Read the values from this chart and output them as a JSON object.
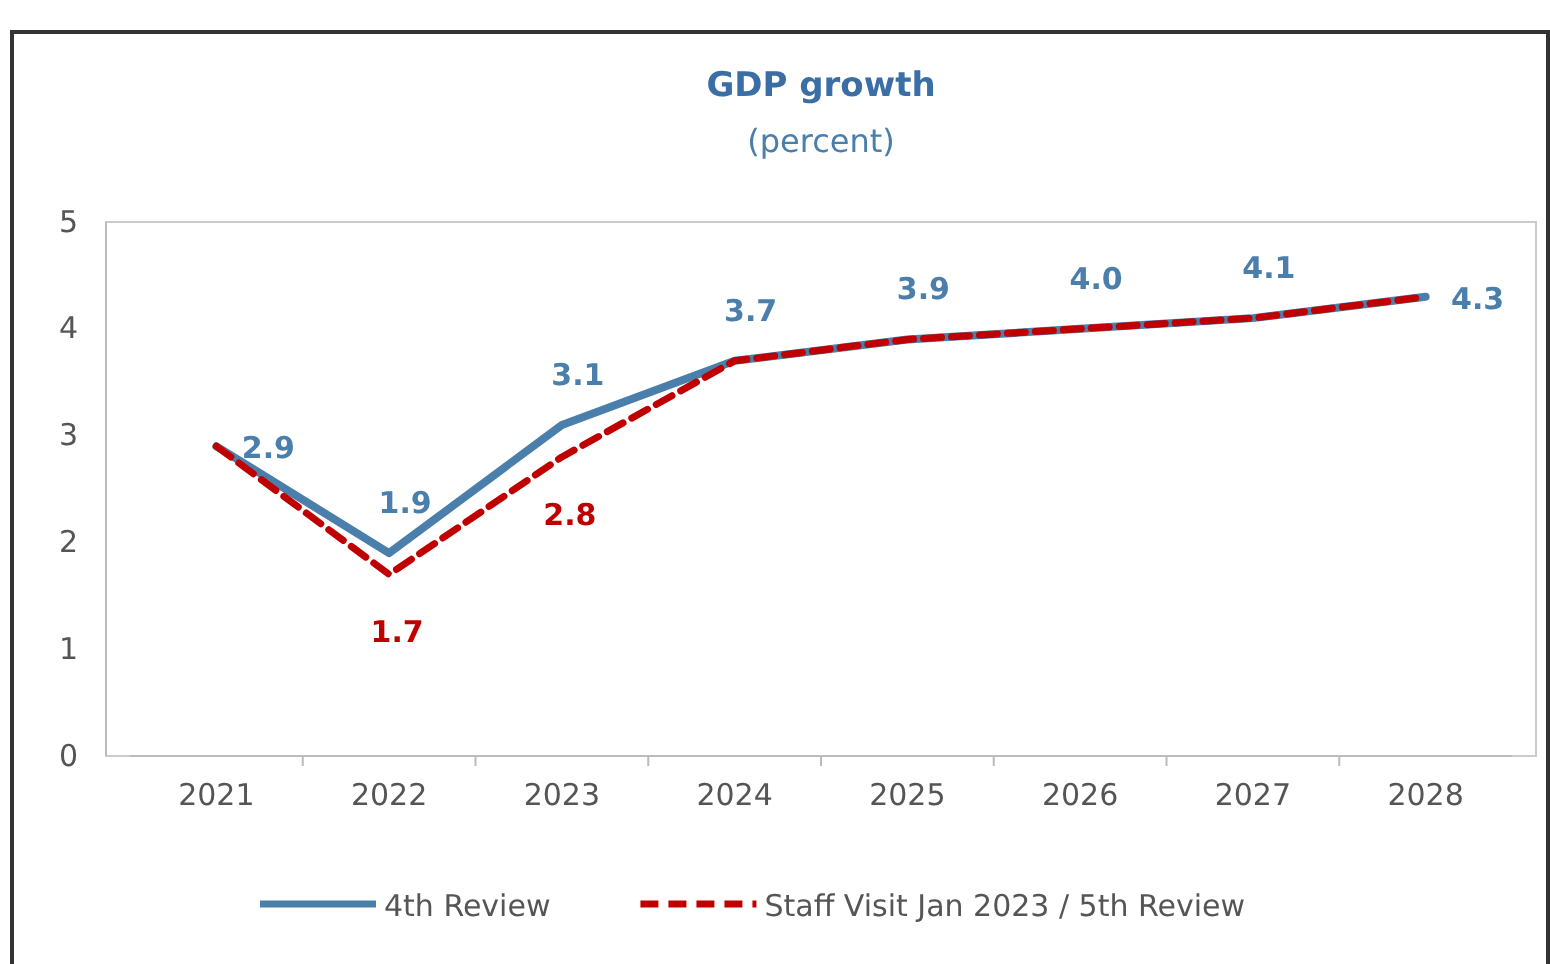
{
  "chart_data": {
    "type": "line",
    "title": "GDP growth",
    "subtitle": "(percent)",
    "categories": [
      "2021",
      "2022",
      "2023",
      "2024",
      "2025",
      "2026",
      "2027",
      "2028"
    ],
    "ylim": [
      0,
      5
    ],
    "yticks": [
      0,
      1,
      2,
      3,
      4,
      5
    ],
    "grid": false,
    "legend": "bottom",
    "marker": "none",
    "series": [
      {
        "name": "4th Review",
        "color": "#4a7eab",
        "line_style": "solid",
        "values": [
          2.9,
          1.9,
          3.1,
          3.7,
          3.9,
          4.0,
          4.1,
          4.3
        ],
        "value_labels": [
          "2.9",
          "1.9",
          "3.1",
          "3.7",
          "3.9",
          "4.0",
          "4.1",
          "4.3"
        ]
      },
      {
        "name": "Staff Visit Jan 2023 / 5th Review",
        "color": "#c00000",
        "line_style": "dashed",
        "values": [
          2.9,
          1.7,
          2.8,
          3.7,
          3.9,
          4.0,
          4.1,
          4.3
        ],
        "value_labels": [
          null,
          "1.7",
          "2.8",
          null,
          null,
          null,
          null,
          null
        ]
      }
    ]
  }
}
